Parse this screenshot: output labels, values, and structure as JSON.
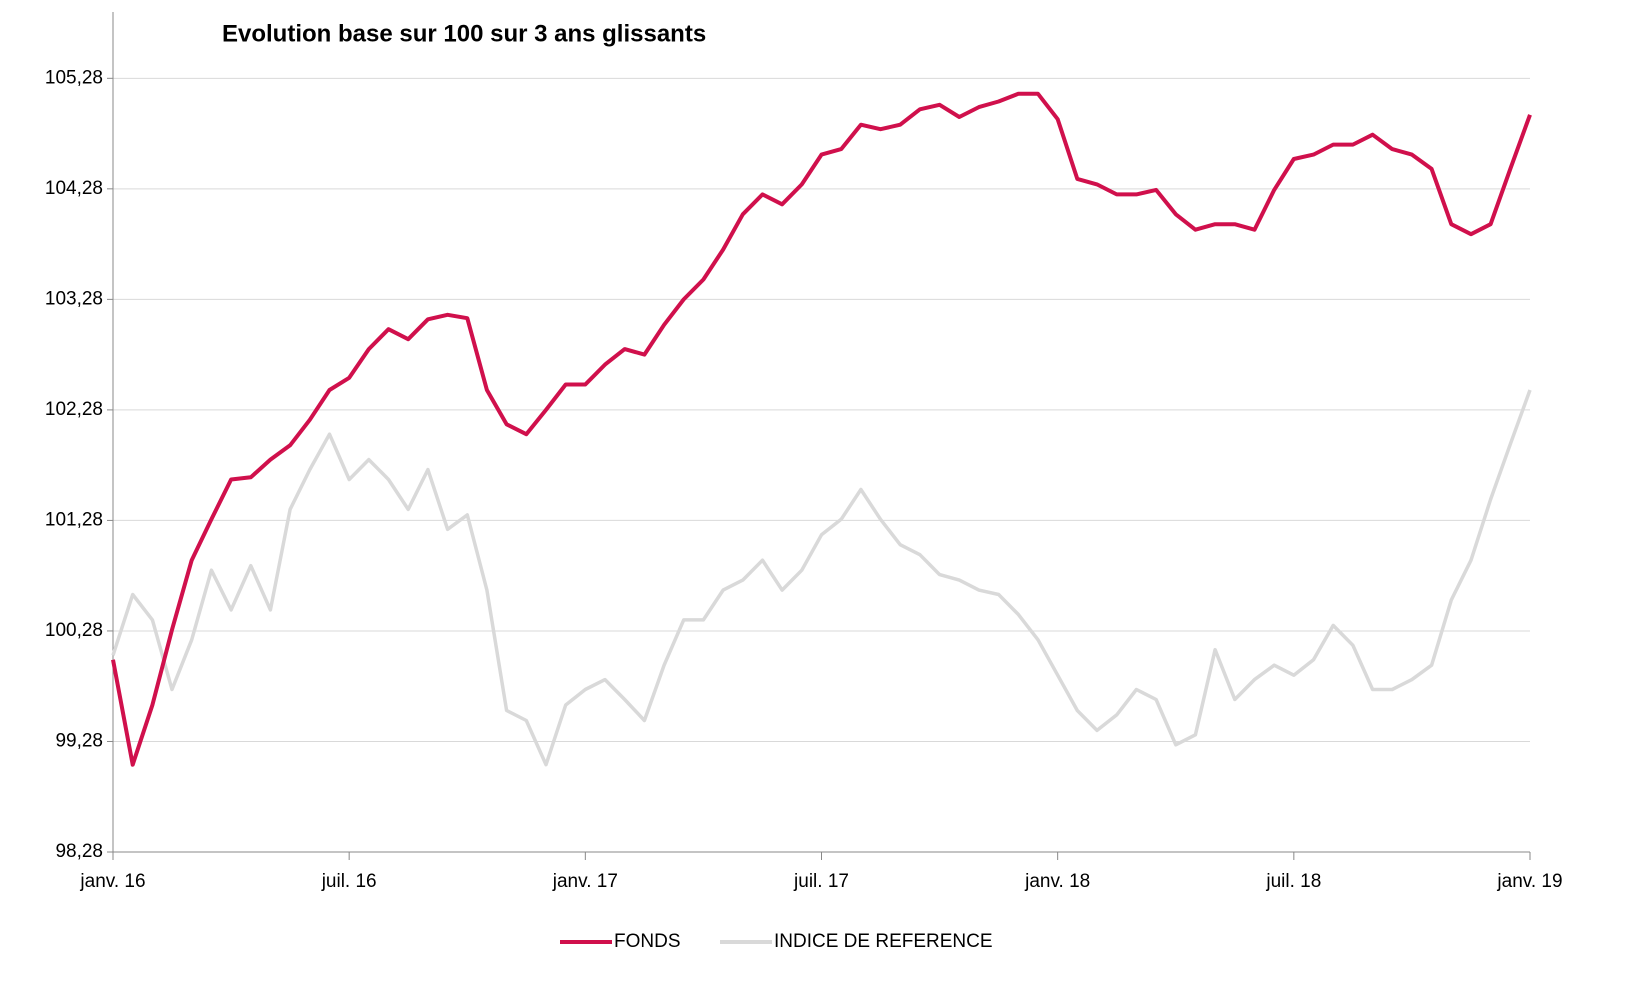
{
  "chart_data": {
    "type": "line",
    "title": "Evolution base sur 100 sur 3 ans glissants",
    "categories": [
      "janv. 16",
      null,
      null,
      null,
      null,
      null,
      null,
      null,
      null,
      null,
      null,
      null,
      "juil. 16",
      null,
      null,
      null,
      null,
      null,
      null,
      null,
      null,
      null,
      null,
      null,
      "janv. 17",
      null,
      null,
      null,
      null,
      null,
      null,
      null,
      null,
      null,
      null,
      null,
      "juil. 17",
      null,
      null,
      null,
      null,
      null,
      null,
      null,
      null,
      null,
      null,
      null,
      "janv. 18",
      null,
      null,
      null,
      null,
      null,
      null,
      null,
      null,
      null,
      null,
      null,
      "juil. 18",
      null,
      null,
      null,
      null,
      null,
      null,
      null,
      null,
      null,
      null,
      null,
      "janv. 19"
    ],
    "series": [
      {
        "name": "FONDS",
        "color": "#d0104c",
        "values": [
          100.02,
          99.07,
          99.61,
          100.29,
          100.92,
          101.29,
          101.65,
          101.67,
          101.83,
          101.96,
          102.19,
          102.46,
          102.57,
          102.83,
          103.01,
          102.92,
          103.1,
          103.14,
          103.11,
          102.46,
          102.15,
          102.06,
          102.28,
          102.51,
          102.51,
          102.69,
          102.83,
          102.78,
          103.05,
          103.28,
          103.46,
          103.73,
          104.05,
          104.23,
          104.14,
          104.32,
          104.59,
          104.64,
          104.86,
          104.82,
          104.86,
          105.0,
          105.04,
          104.93,
          105.02,
          105.07,
          105.14,
          105.14,
          104.91,
          104.37,
          104.32,
          104.23,
          104.23,
          104.27,
          104.05,
          103.91,
          103.96,
          103.96,
          103.91,
          104.27,
          104.55,
          104.59,
          104.68,
          104.68,
          104.77,
          104.64,
          104.59,
          104.46,
          103.96,
          103.87,
          103.96,
          104.46,
          104.95
        ]
      },
      {
        "name": "INDICE DE REFERENCE",
        "color": "#d9d9d9",
        "values": [
          100.06,
          100.61,
          100.38,
          99.75,
          100.2,
          100.83,
          100.47,
          100.87,
          100.47,
          101.38,
          101.74,
          102.06,
          101.65,
          101.83,
          101.65,
          101.38,
          101.74,
          101.2,
          101.33,
          100.65,
          99.56,
          99.47,
          99.07,
          99.61,
          99.75,
          99.84,
          99.66,
          99.47,
          99.97,
          100.38,
          100.38,
          100.65,
          100.74,
          100.92,
          100.65,
          100.83,
          101.15,
          101.29,
          101.56,
          101.29,
          101.06,
          100.97,
          100.79,
          100.74,
          100.65,
          100.61,
          100.43,
          100.2,
          99.88,
          99.56,
          99.38,
          99.52,
          99.75,
          99.66,
          99.25,
          99.34,
          100.11,
          99.66,
          99.84,
          99.97,
          99.88,
          100.02,
          100.33,
          100.15,
          99.75,
          99.75,
          99.84,
          99.97,
          100.56,
          100.92,
          101.47,
          101.97,
          102.46
        ]
      }
    ],
    "ylim": [
      98.28,
      105.88
    ],
    "yticks": [
      {
        "value": 98.28,
        "label": "98,28"
      },
      {
        "value": 99.28,
        "label": "99,28"
      },
      {
        "value": 100.28,
        "label": "100,28"
      },
      {
        "value": 101.28,
        "label": "101,28"
      },
      {
        "value": 102.28,
        "label": "102,28"
      },
      {
        "value": 103.28,
        "label": "103,28"
      },
      {
        "value": 104.28,
        "label": "104,28"
      },
      {
        "value": 105.28,
        "label": "105,28"
      }
    ],
    "grid": true,
    "legend": "bottom"
  }
}
